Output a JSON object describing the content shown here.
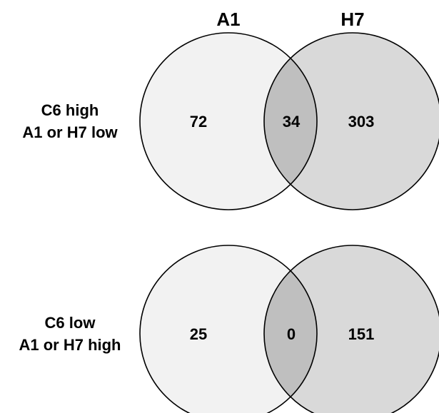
{
  "headers": {
    "left": "A1",
    "right": "H7"
  },
  "colors": {
    "left_fill": "#f2f2f2",
    "right_fill": "#d9d9d9",
    "overlap_fill": "#bfbfbf",
    "stroke": "#000000"
  },
  "diagrams": [
    {
      "row_label_line1": "C6 high",
      "row_label_line2": "A1 or H7 low",
      "left_only": "72",
      "overlap": "34",
      "right_only": "303"
    },
    {
      "row_label_line1": "C6 low",
      "row_label_line2": "A1 or H7 high",
      "left_only": "25",
      "overlap": "0",
      "right_only": "151"
    }
  ]
}
